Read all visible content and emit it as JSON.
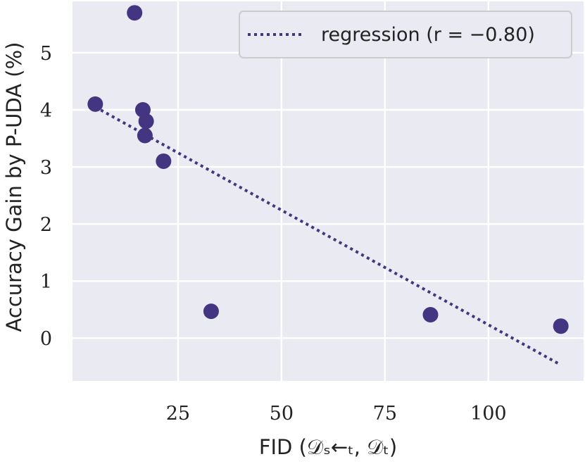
{
  "chart_data": {
    "type": "scatter",
    "xlabel": "FID (𝒟ₛ←ₜ, 𝒟ₜ)",
    "ylabel": "Accuracy Gain by P-UDA (%)",
    "xlim": [
      -0.5,
      123
    ],
    "ylim": [
      -0.75,
      5.9
    ],
    "xticks": [
      25,
      50,
      75,
      100
    ],
    "xtick_labels": [
      "25",
      "50",
      "75",
      "100"
    ],
    "yticks": [
      0,
      1,
      2,
      3,
      4,
      5
    ],
    "ytick_labels": [
      "0",
      "1",
      "2",
      "3",
      "4",
      "5"
    ],
    "grid": true,
    "legend_position": "top-right",
    "series": [
      {
        "kind": "points",
        "x": [
          5,
          14.5,
          16.5,
          17.3,
          17,
          21.5,
          33,
          86,
          117.5
        ],
        "y": [
          4.1,
          5.7,
          4.0,
          3.8,
          3.55,
          3.1,
          0.47,
          0.41,
          0.21
        ]
      },
      {
        "kind": "line",
        "name": "regression (r = −0.80)",
        "style": "dotted",
        "x": [
          5,
          117.5
        ],
        "y": [
          4.05,
          -0.47
        ]
      }
    ],
    "colors": {
      "marker": "#433581",
      "line": "#433581",
      "plot_background": "#eaeaf2",
      "grid": "#ffffff"
    }
  }
}
